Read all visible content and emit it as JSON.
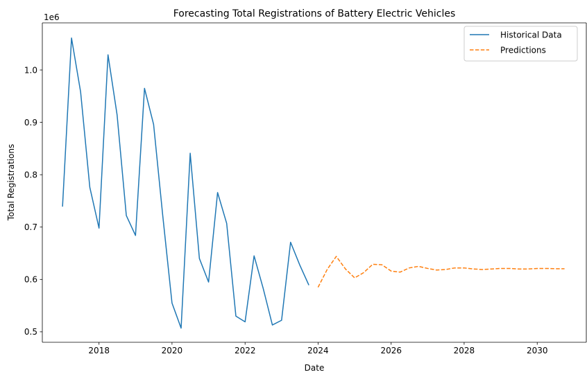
{
  "chart_data": {
    "type": "line",
    "title": "Forecasting Total Registrations of Battery Electric Vehicles",
    "xlabel": "Date",
    "ylabel": "Total Registrations",
    "y_offset_label": "1e6",
    "xlim": [
      "2016-06-13",
      "2031-05-07"
    ],
    "ylim": [
      480000,
      1090000
    ],
    "x_ticks": [
      {
        "label": "2018",
        "date": "2018-01-01"
      },
      {
        "label": "2020",
        "date": "2020-01-01"
      },
      {
        "label": "2022",
        "date": "2022-01-01"
      },
      {
        "label": "2024",
        "date": "2024-01-01"
      },
      {
        "label": "2026",
        "date": "2026-01-01"
      },
      {
        "label": "2028",
        "date": "2028-01-01"
      },
      {
        "label": "2030",
        "date": "2030-01-01"
      }
    ],
    "y_ticks": [
      {
        "label": "0.5",
        "value": 500000
      },
      {
        "label": "0.6",
        "value": 600000
      },
      {
        "label": "0.7",
        "value": 700000
      },
      {
        "label": "0.8",
        "value": 800000
      },
      {
        "label": "0.9",
        "value": 900000
      },
      {
        "label": "1.0",
        "value": 1000000
      }
    ],
    "grid": false,
    "legend_position": "top-right",
    "series": [
      {
        "name": "Historical Data",
        "color": "#1f77b4",
        "style": "solid",
        "points": [
          {
            "x": "2017-01-01",
            "y": 739000
          },
          {
            "x": "2017-04-01",
            "y": 1061000
          },
          {
            "x": "2017-07-01",
            "y": 958000
          },
          {
            "x": "2017-10-01",
            "y": 776000
          },
          {
            "x": "2018-01-01",
            "y": 698000
          },
          {
            "x": "2018-04-01",
            "y": 1029000
          },
          {
            "x": "2018-07-01",
            "y": 914000
          },
          {
            "x": "2018-10-01",
            "y": 722000
          },
          {
            "x": "2019-01-01",
            "y": 684000
          },
          {
            "x": "2019-04-01",
            "y": 965000
          },
          {
            "x": "2019-07-01",
            "y": 896000
          },
          {
            "x": "2019-10-01",
            "y": 721000
          },
          {
            "x": "2020-01-01",
            "y": 555000
          },
          {
            "x": "2020-04-01",
            "y": 507000
          },
          {
            "x": "2020-07-01",
            "y": 841000
          },
          {
            "x": "2020-10-01",
            "y": 640000
          },
          {
            "x": "2021-01-01",
            "y": 595000
          },
          {
            "x": "2021-04-01",
            "y": 766000
          },
          {
            "x": "2021-07-01",
            "y": 707000
          },
          {
            "x": "2021-10-01",
            "y": 530000
          },
          {
            "x": "2022-01-01",
            "y": 519000
          },
          {
            "x": "2022-04-01",
            "y": 645000
          },
          {
            "x": "2022-07-01",
            "y": 583000
          },
          {
            "x": "2022-10-01",
            "y": 513000
          },
          {
            "x": "2023-01-01",
            "y": 522000
          },
          {
            "x": "2023-04-01",
            "y": 671000
          },
          {
            "x": "2023-07-01",
            "y": 628000
          },
          {
            "x": "2023-10-01",
            "y": 589000
          }
        ]
      },
      {
        "name": "Predictions",
        "color": "#ff7f0e",
        "style": "dashed",
        "points": [
          {
            "x": "2024-01-01",
            "y": 585000
          },
          {
            "x": "2024-04-01",
            "y": 619000
          },
          {
            "x": "2024-07-01",
            "y": 644000
          },
          {
            "x": "2024-10-01",
            "y": 620000
          },
          {
            "x": "2025-01-01",
            "y": 603000
          },
          {
            "x": "2025-04-01",
            "y": 613000
          },
          {
            "x": "2025-07-01",
            "y": 629000
          },
          {
            "x": "2025-10-01",
            "y": 628000
          },
          {
            "x": "2026-01-01",
            "y": 616000
          },
          {
            "x": "2026-04-01",
            "y": 614000
          },
          {
            "x": "2026-07-01",
            "y": 622000
          },
          {
            "x": "2026-10-01",
            "y": 625000
          },
          {
            "x": "2027-01-01",
            "y": 621000
          },
          {
            "x": "2027-04-01",
            "y": 618000
          },
          {
            "x": "2027-07-01",
            "y": 619000
          },
          {
            "x": "2027-10-01",
            "y": 622000
          },
          {
            "x": "2028-01-01",
            "y": 622000
          },
          {
            "x": "2028-04-01",
            "y": 620000
          },
          {
            "x": "2028-07-01",
            "y": 619000
          },
          {
            "x": "2028-10-01",
            "y": 620000
          },
          {
            "x": "2029-01-01",
            "y": 621000
          },
          {
            "x": "2029-04-01",
            "y": 621000
          },
          {
            "x": "2029-07-01",
            "y": 620000
          },
          {
            "x": "2029-10-01",
            "y": 620000
          },
          {
            "x": "2030-01-01",
            "y": 621000
          },
          {
            "x": "2030-04-01",
            "y": 621000
          },
          {
            "x": "2030-07-01",
            "y": 620500
          },
          {
            "x": "2030-10-01",
            "y": 620500
          }
        ]
      }
    ]
  }
}
